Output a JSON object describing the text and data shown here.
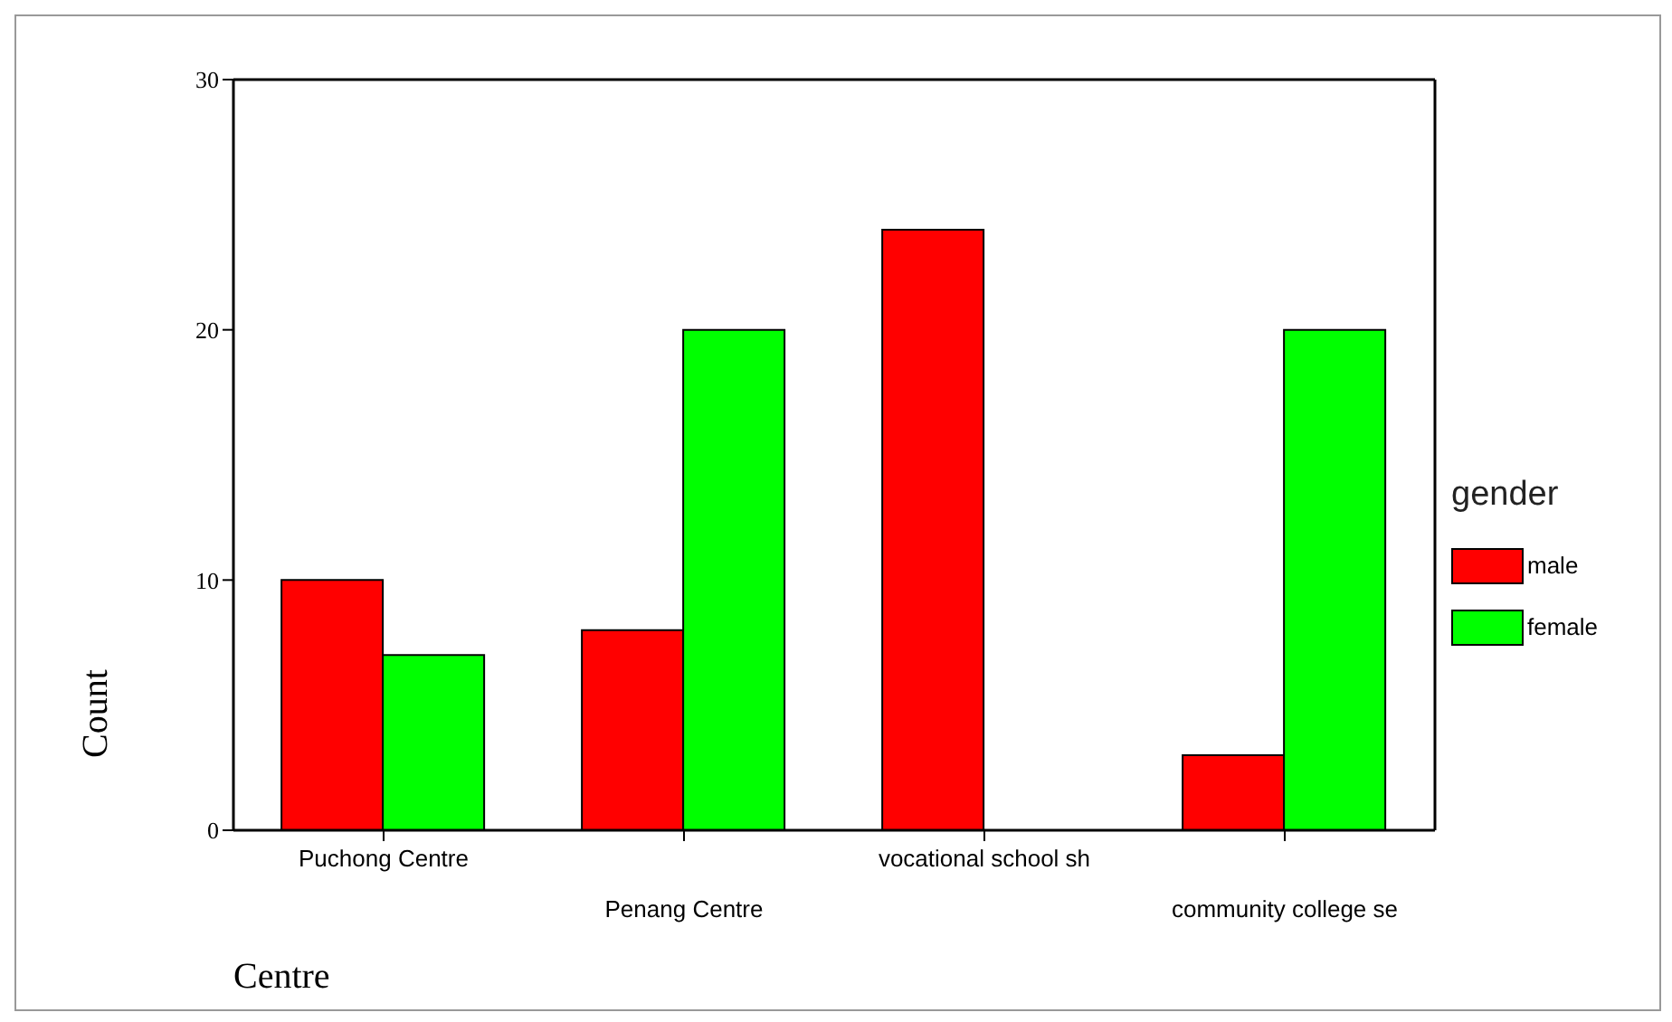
{
  "chart_data": {
    "type": "bar",
    "xlabel": "Centre",
    "ylabel": "Count",
    "legend_title": "gender",
    "categories": [
      "Puchong Centre",
      "Penang Centre",
      "vocational school sh",
      "community college se"
    ],
    "series": [
      {
        "name": "male",
        "color": "#ff0000",
        "values": [
          10,
          8,
          24,
          3
        ]
      },
      {
        "name": "female",
        "color": "#00ff00",
        "values": [
          7,
          20,
          null,
          20
        ]
      }
    ],
    "ylim": [
      0,
      30
    ],
    "yticks": [
      0,
      10,
      20,
      30
    ],
    "grid": false,
    "legend": "right"
  }
}
